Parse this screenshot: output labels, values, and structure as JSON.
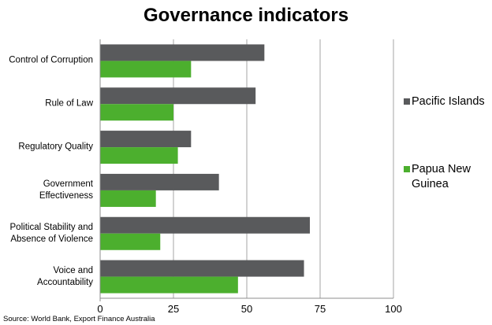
{
  "chart_data": {
    "type": "bar",
    "orientation": "horizontal",
    "title": "Governance indicators",
    "categories": [
      "Control of Corruption",
      "Rule of Law",
      "Regulatory Quality",
      "Government\nEffectiveness",
      "Political Stability and\nAbsence of Violence",
      "Voice and\nAccountability"
    ],
    "series": [
      {
        "name": "Pacific Islands",
        "color": "#595a5c",
        "values": [
          56,
          53,
          31,
          40.5,
          71.5,
          69.5
        ]
      },
      {
        "name": "Papua New\nGuinea",
        "color": "#4caf2e",
        "values": [
          31,
          25,
          26.5,
          19,
          20.5,
          47
        ]
      }
    ],
    "xlim": [
      0,
      100
    ],
    "xticks": [
      "0",
      "25",
      "50",
      "75",
      "100"
    ],
    "xtick_values": [
      0,
      25,
      50,
      75,
      100
    ],
    "grid": "vertical",
    "legend_position": "right",
    "source": "Source: World Bank, Export Finance Australia"
  }
}
